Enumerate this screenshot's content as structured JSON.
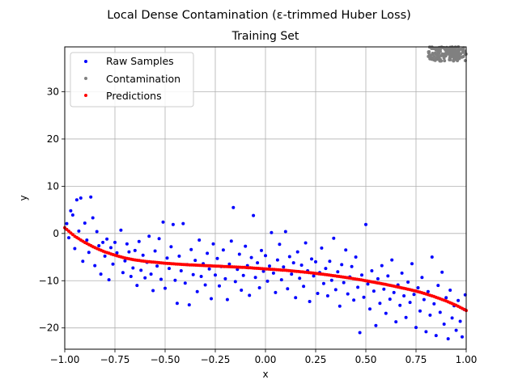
{
  "chart_data": {
    "type": "scatter",
    "suptitle": "Local Dense Contamination (ε-trimmed Huber Loss)",
    "title": "Training Set",
    "xlabel": "x",
    "ylabel": "y",
    "xlim": [
      -1.0,
      1.0
    ],
    "ylim": [
      -24.5,
      39.5
    ],
    "xticks": [
      -1.0,
      -0.75,
      -0.5,
      -0.25,
      0.0,
      0.25,
      0.5,
      0.75,
      1.0
    ],
    "xtick_labels": [
      "−1.00",
      "−0.75",
      "−0.50",
      "−0.25",
      "0.00",
      "0.25",
      "0.50",
      "0.75",
      "1.00"
    ],
    "yticks": [
      -20,
      -10,
      0,
      10,
      20,
      30
    ],
    "ytick_labels": [
      "−20",
      "−10",
      "0",
      "10",
      "20",
      "30"
    ],
    "grid": true,
    "legend_position": "top-left",
    "legend": [
      "Raw Samples",
      "Contamination",
      "Predictions"
    ],
    "colors": {
      "raw": "#0000ff",
      "contamination": "#808080",
      "predictions": "#ff0000"
    },
    "series": [
      {
        "name": "Raw Samples",
        "color": "#0000ff",
        "points": [
          [
            -0.99,
            2.1
          ],
          [
            -0.98,
            -0.9
          ],
          [
            -0.97,
            4.8
          ],
          [
            -0.96,
            3.9
          ],
          [
            -0.95,
            -3.2
          ],
          [
            -0.94,
            7.1
          ],
          [
            -0.93,
            0.5
          ],
          [
            -0.92,
            7.5
          ],
          [
            -0.91,
            -5.9
          ],
          [
            -0.9,
            2.2
          ],
          [
            -0.89,
            -1.4
          ],
          [
            -0.88,
            -4.0
          ],
          [
            -0.87,
            7.7
          ],
          [
            -0.86,
            3.3
          ],
          [
            -0.85,
            -6.8
          ],
          [
            -0.84,
            0.4
          ],
          [
            -0.83,
            -2.6
          ],
          [
            -0.82,
            -8.6
          ],
          [
            -0.81,
            -1.9
          ],
          [
            -0.8,
            -4.8
          ],
          [
            -0.79,
            -1.2
          ],
          [
            -0.78,
            -9.8
          ],
          [
            -0.77,
            -3.0
          ],
          [
            -0.76,
            -6.5
          ],
          [
            -0.75,
            -1.9
          ],
          [
            -0.74,
            -4.1
          ],
          [
            -0.72,
            0.7
          ],
          [
            -0.71,
            -8.3
          ],
          [
            -0.7,
            -5.8
          ],
          [
            -0.69,
            -2.2
          ],
          [
            -0.68,
            -3.9
          ],
          [
            -0.67,
            -9.1
          ],
          [
            -0.66,
            -7.3
          ],
          [
            -0.65,
            -3.6
          ],
          [
            -0.64,
            -11.0
          ],
          [
            -0.63,
            -1.7
          ],
          [
            -0.62,
            -7.8
          ],
          [
            -0.61,
            -4.6
          ],
          [
            -0.6,
            -9.4
          ],
          [
            -0.59,
            -6.1
          ],
          [
            -0.58,
            -0.6
          ],
          [
            -0.57,
            -8.6
          ],
          [
            -0.56,
            -12.1
          ],
          [
            -0.55,
            -3.7
          ],
          [
            -0.54,
            -6.9
          ],
          [
            -0.53,
            -1.1
          ],
          [
            -0.52,
            -9.7
          ],
          [
            -0.51,
            2.4
          ],
          [
            -0.5,
            -11.6
          ],
          [
            -0.49,
            -5.2
          ],
          [
            -0.48,
            -7.4
          ],
          [
            -0.47,
            -2.8
          ],
          [
            -0.46,
            1.9
          ],
          [
            -0.45,
            -9.9
          ],
          [
            -0.44,
            -14.8
          ],
          [
            -0.43,
            -4.8
          ],
          [
            -0.42,
            -7.9
          ],
          [
            -0.41,
            2.1
          ],
          [
            -0.4,
            -10.5
          ],
          [
            -0.39,
            -6.6
          ],
          [
            -0.38,
            -15.1
          ],
          [
            -0.37,
            -3.4
          ],
          [
            -0.36,
            -8.7
          ],
          [
            -0.35,
            -5.7
          ],
          [
            -0.34,
            -12.3
          ],
          [
            -0.33,
            -1.4
          ],
          [
            -0.32,
            -9.1
          ],
          [
            -0.31,
            -6.4
          ],
          [
            -0.3,
            -10.9
          ],
          [
            -0.29,
            -4.2
          ],
          [
            -0.28,
            -7.5
          ],
          [
            -0.27,
            -13.8
          ],
          [
            -0.26,
            -2.2
          ],
          [
            -0.25,
            -8.8
          ],
          [
            -0.24,
            -5.3
          ],
          [
            -0.23,
            -11.1
          ],
          [
            -0.22,
            -7.0
          ],
          [
            -0.21,
            -3.5
          ],
          [
            -0.2,
            -9.6
          ],
          [
            -0.19,
            -14.0
          ],
          [
            -0.18,
            -6.5
          ],
          [
            -0.17,
            -1.6
          ],
          [
            -0.16,
            5.5
          ],
          [
            -0.15,
            -10.2
          ],
          [
            -0.14,
            -7.6
          ],
          [
            -0.13,
            -4.4
          ],
          [
            -0.12,
            -12.0
          ],
          [
            -0.11,
            -8.9
          ],
          [
            -0.1,
            -2.7
          ],
          [
            -0.09,
            -6.8
          ],
          [
            -0.08,
            -13.1
          ],
          [
            -0.07,
            -5.1
          ],
          [
            -0.06,
            3.8
          ],
          [
            -0.05,
            -9.3
          ],
          [
            -0.04,
            -6.2
          ],
          [
            -0.03,
            -11.5
          ],
          [
            -0.02,
            -3.6
          ],
          [
            -0.01,
            -8.0
          ],
          [
            0.0,
            -4.7
          ],
          [
            0.01,
            -10.1
          ],
          [
            0.02,
            -6.9
          ],
          [
            0.03,
            0.2
          ],
          [
            0.04,
            -8.4
          ],
          [
            0.05,
            -12.5
          ],
          [
            0.06,
            -5.6
          ],
          [
            0.07,
            -2.3
          ],
          [
            0.08,
            -9.8
          ],
          [
            0.09,
            -7.1
          ],
          [
            0.1,
            0.4
          ],
          [
            0.11,
            -11.7
          ],
          [
            0.12,
            -4.9
          ],
          [
            0.13,
            -8.6
          ],
          [
            0.14,
            -6.2
          ],
          [
            0.15,
            -13.6
          ],
          [
            0.16,
            -3.9
          ],
          [
            0.17,
            -9.5
          ],
          [
            0.18,
            -6.7
          ],
          [
            0.19,
            -11.2
          ],
          [
            0.2,
            -2.0
          ],
          [
            0.21,
            -7.9
          ],
          [
            0.22,
            -14.4
          ],
          [
            0.23,
            -5.4
          ],
          [
            0.24,
            -9.0
          ],
          [
            0.25,
            -6.0
          ],
          [
            0.26,
            -12.7
          ],
          [
            0.27,
            -8.3
          ],
          [
            0.28,
            -3.1
          ],
          [
            0.29,
            -10.6
          ],
          [
            0.3,
            -7.4
          ],
          [
            0.31,
            -13.2
          ],
          [
            0.32,
            -5.9
          ],
          [
            0.33,
            -9.9
          ],
          [
            0.34,
            -1.0
          ],
          [
            0.35,
            -11.9
          ],
          [
            0.36,
            -8.1
          ],
          [
            0.37,
            -15.4
          ],
          [
            0.38,
            -6.6
          ],
          [
            0.39,
            -10.4
          ],
          [
            0.4,
            -3.5
          ],
          [
            0.41,
            -12.8
          ],
          [
            0.42,
            -9.2
          ],
          [
            0.43,
            -7.0
          ],
          [
            0.44,
            -14.1
          ],
          [
            0.45,
            -5.0
          ],
          [
            0.46,
            -11.4
          ],
          [
            0.47,
            -21.0
          ],
          [
            0.48,
            -8.8
          ],
          [
            0.49,
            -13.5
          ],
          [
            0.5,
            1.9
          ],
          [
            0.51,
            -10.7
          ],
          [
            0.52,
            -16.0
          ],
          [
            0.53,
            -7.9
          ],
          [
            0.54,
            -12.2
          ],
          [
            0.55,
            -19.5
          ],
          [
            0.56,
            -9.6
          ],
          [
            0.57,
            -14.8
          ],
          [
            0.58,
            -6.8
          ],
          [
            0.59,
            -11.8
          ],
          [
            0.6,
            -16.9
          ],
          [
            0.61,
            -9.0
          ],
          [
            0.62,
            -13.9
          ],
          [
            0.63,
            -5.6
          ],
          [
            0.64,
            -12.5
          ],
          [
            0.65,
            -18.7
          ],
          [
            0.66,
            -10.9
          ],
          [
            0.67,
            -15.2
          ],
          [
            0.68,
            -8.4
          ],
          [
            0.69,
            -13.2
          ],
          [
            0.7,
            -17.8
          ],
          [
            0.71,
            -10.3
          ],
          [
            0.72,
            -14.6
          ],
          [
            0.73,
            -6.4
          ],
          [
            0.74,
            -12.9
          ],
          [
            0.75,
            -19.9
          ],
          [
            0.76,
            -11.5
          ],
          [
            0.77,
            -16.4
          ],
          [
            0.78,
            -9.3
          ],
          [
            0.79,
            -14.0
          ],
          [
            0.8,
            -20.8
          ],
          [
            0.81,
            -12.3
          ],
          [
            0.82,
            -17.3
          ],
          [
            0.83,
            -5.0
          ],
          [
            0.84,
            -14.9
          ],
          [
            0.85,
            -21.6
          ],
          [
            0.86,
            -11.0
          ],
          [
            0.87,
            -16.7
          ],
          [
            0.88,
            -8.2
          ],
          [
            0.89,
            -19.2
          ],
          [
            0.9,
            -13.6
          ],
          [
            0.91,
            -22.3
          ],
          [
            0.92,
            -12.0
          ],
          [
            0.93,
            -17.9
          ],
          [
            0.94,
            -15.3
          ],
          [
            0.95,
            -20.5
          ],
          [
            0.96,
            -14.2
          ],
          [
            0.97,
            -18.6
          ],
          [
            0.98,
            -21.9
          ],
          [
            0.99,
            -16.1
          ],
          [
            0.995,
            -13.0
          ]
        ]
      },
      {
        "name": "Contamination",
        "color": "#808080",
        "region": {
          "x": [
            0.81,
            1.0
          ],
          "y": [
            36.5,
            39.5
          ]
        },
        "n_points": 160
      },
      {
        "name": "Predictions",
        "color": "#ff0000",
        "curve": [
          [
            -1.0,
            1.2
          ],
          [
            -0.95,
            -0.6
          ],
          [
            -0.9,
            -1.9
          ],
          [
            -0.85,
            -3.0
          ],
          [
            -0.8,
            -3.9
          ],
          [
            -0.75,
            -4.6
          ],
          [
            -0.7,
            -5.2
          ],
          [
            -0.65,
            -5.6
          ],
          [
            -0.6,
            -5.9
          ],
          [
            -0.5,
            -6.3
          ],
          [
            -0.4,
            -6.6
          ],
          [
            -0.3,
            -6.8
          ],
          [
            -0.2,
            -7.0
          ],
          [
            -0.1,
            -7.2
          ],
          [
            0.0,
            -7.5
          ],
          [
            0.1,
            -7.8
          ],
          [
            0.2,
            -8.2
          ],
          [
            0.3,
            -8.7
          ],
          [
            0.4,
            -9.3
          ],
          [
            0.5,
            -10.0
          ],
          [
            0.6,
            -10.8
          ],
          [
            0.7,
            -11.7
          ],
          [
            0.75,
            -12.2
          ],
          [
            0.8,
            -12.8
          ],
          [
            0.85,
            -13.5
          ],
          [
            0.9,
            -14.3
          ],
          [
            0.95,
            -15.2
          ],
          [
            1.0,
            -16.3
          ]
        ],
        "n_points": 200
      }
    ]
  }
}
